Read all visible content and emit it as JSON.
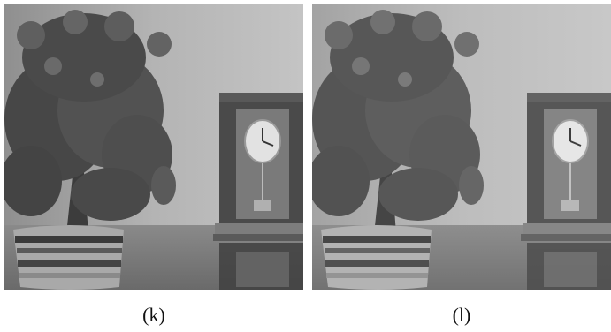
{
  "panels": [
    {
      "caption": "(k)"
    },
    {
      "caption": "(l)"
    }
  ],
  "image_content": {
    "subjects": [
      "rose-plant-icon",
      "striped-flower-pot-icon",
      "mantel-clock-icon"
    ],
    "style": "grayscale photograph"
  },
  "colors": {
    "background": "#ffffff",
    "caption_text": "#111111"
  }
}
